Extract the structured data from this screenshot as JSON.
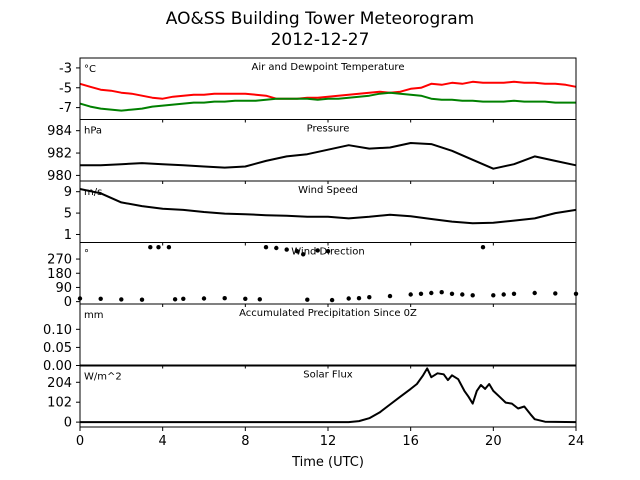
{
  "title": "AO&SS Building Tower Meteorogram",
  "subtitle": "2012-12-27",
  "chart_data": [
    {
      "type": "line",
      "title": "Air and Dewpoint Temperature",
      "unit": "°C",
      "ylim": [
        -8.2,
        -2.0
      ],
      "yticks": [
        -3,
        -5,
        -7
      ],
      "series": [
        {
          "color": "#ff0000",
          "x": [
            0,
            0.5,
            1,
            1.5,
            2,
            2.5,
            3,
            3.5,
            4,
            4.5,
            5,
            5.5,
            6,
            6.5,
            7,
            7.5,
            8,
            8.5,
            9,
            9.5,
            10,
            10.5,
            11,
            11.5,
            12,
            12.5,
            13,
            13.5,
            14,
            14.5,
            15,
            15.5,
            16,
            16.5,
            17,
            17.5,
            18,
            18.5,
            19,
            19.5,
            20,
            20.5,
            21,
            21.5,
            22,
            22.5,
            23,
            23.5,
            24
          ],
          "y": [
            -4.6,
            -4.9,
            -5.2,
            -5.3,
            -5.5,
            -5.6,
            -5.8,
            -6.0,
            -6.1,
            -5.9,
            -5.8,
            -5.7,
            -5.7,
            -5.6,
            -5.6,
            -5.6,
            -5.6,
            -5.7,
            -5.8,
            -6.1,
            -6.1,
            -6.1,
            -6.0,
            -6.0,
            -5.9,
            -5.8,
            -5.7,
            -5.6,
            -5.5,
            -5.4,
            -5.5,
            -5.4,
            -5.1,
            -5.0,
            -4.6,
            -4.7,
            -4.5,
            -4.6,
            -4.4,
            -4.5,
            -4.5,
            -4.5,
            -4.4,
            -4.5,
            -4.5,
            -4.6,
            -4.6,
            -4.7,
            -4.9
          ]
        },
        {
          "color": "#008000",
          "x": [
            0,
            0.5,
            1,
            1.5,
            2,
            2.5,
            3,
            3.5,
            4,
            4.5,
            5,
            5.5,
            6,
            6.5,
            7,
            7.5,
            8,
            8.5,
            9,
            9.5,
            10,
            10.5,
            11,
            11.5,
            12,
            12.5,
            13,
            13.5,
            14,
            14.5,
            15,
            15.5,
            16,
            16.5,
            17,
            17.5,
            18,
            18.5,
            19,
            19.5,
            20,
            20.5,
            21,
            21.5,
            22,
            22.5,
            23,
            23.5,
            24
          ],
          "y": [
            -6.6,
            -6.9,
            -7.1,
            -7.2,
            -7.3,
            -7.2,
            -7.1,
            -6.9,
            -6.8,
            -6.7,
            -6.6,
            -6.5,
            -6.5,
            -6.4,
            -6.4,
            -6.3,
            -6.3,
            -6.3,
            -6.2,
            -6.1,
            -6.1,
            -6.1,
            -6.1,
            -6.2,
            -6.1,
            -6.1,
            -6.0,
            -5.9,
            -5.8,
            -5.6,
            -5.5,
            -5.6,
            -5.7,
            -5.8,
            -6.1,
            -6.2,
            -6.2,
            -6.3,
            -6.3,
            -6.4,
            -6.4,
            -6.4,
            -6.3,
            -6.4,
            -6.4,
            -6.4,
            -6.5,
            -6.5,
            -6.5
          ]
        }
      ]
    },
    {
      "type": "line",
      "title": "Pressure",
      "unit": "hPa",
      "ylim": [
        979.5,
        985.0
      ],
      "yticks": [
        984,
        982,
        980
      ],
      "series": [
        {
          "color": "#000000",
          "x": [
            0,
            1,
            2,
            3,
            4,
            5,
            6,
            7,
            8,
            9,
            10,
            11,
            12,
            13,
            14,
            15,
            16,
            17,
            18,
            19,
            20,
            21,
            22,
            23,
            24
          ],
          "y": [
            980.9,
            980.9,
            981.0,
            981.1,
            981.0,
            980.9,
            980.8,
            980.7,
            980.8,
            981.3,
            981.7,
            981.9,
            982.3,
            982.7,
            982.4,
            982.5,
            982.9,
            982.8,
            982.2,
            981.4,
            980.6,
            981.0,
            981.7,
            981.3,
            980.9
          ]
        }
      ]
    },
    {
      "type": "line",
      "title": "Wind Speed",
      "unit": "m/s",
      "ylim": [
        -0.5,
        11
      ],
      "yticks": [
        9,
        5,
        1
      ],
      "series": [
        {
          "color": "#000000",
          "x": [
            0,
            1,
            2,
            3,
            4,
            5,
            6,
            7,
            8,
            9,
            10,
            11,
            12,
            13,
            14,
            15,
            16,
            17,
            18,
            19,
            20,
            21,
            22,
            23,
            24
          ],
          "y": [
            9.5,
            8.7,
            7.0,
            6.3,
            5.8,
            5.6,
            5.2,
            4.9,
            4.8,
            4.6,
            4.5,
            4.3,
            4.3,
            4.0,
            4.3,
            4.7,
            4.4,
            3.9,
            3.4,
            3.1,
            3.2,
            3.6,
            4.0,
            5.0,
            5.6
          ]
        }
      ]
    },
    {
      "type": "scatter",
      "title": "Wind Direction",
      "unit": "°",
      "ylim": [
        -15,
        375
      ],
      "yticks": [
        270,
        180,
        90,
        0
      ],
      "series": [
        {
          "color": "#000000",
          "x": [
            0,
            1,
            2,
            3,
            3.4,
            3.8,
            4.3,
            4.6,
            5,
            6,
            7,
            8,
            8.7,
            9,
            9.5,
            10,
            10.5,
            10.8,
            11,
            11.5,
            12,
            12.2,
            13,
            13.5,
            14,
            15,
            16,
            16.5,
            17,
            17.5,
            18,
            18.5,
            19,
            19.5,
            20,
            20.5,
            21,
            22,
            23,
            24
          ],
          "y": [
            20,
            18,
            14,
            12,
            345,
            345,
            345,
            15,
            18,
            20,
            22,
            18,
            15,
            345,
            340,
            330,
            320,
            300,
            12,
            325,
            320,
            10,
            20,
            22,
            28,
            35,
            45,
            50,
            55,
            60,
            50,
            45,
            40,
            345,
            40,
            45,
            50,
            55,
            52,
            50
          ]
        }
      ]
    },
    {
      "type": "line",
      "title": "Accumulated Precipitation Since 0Z",
      "unit": "mm",
      "ylim": [
        0.0,
        0.17
      ],
      "yticks": [
        0.1,
        0.05,
        0.0
      ],
      "series": [
        {
          "color": "#000000",
          "x": [
            0,
            24
          ],
          "y": [
            0.0,
            0.0
          ]
        }
      ]
    },
    {
      "type": "line",
      "title": "Solar Flux",
      "unit": "W/m^2",
      "ylim": [
        -25,
        290
      ],
      "yticks": [
        204,
        102,
        0
      ],
      "series": [
        {
          "color": "#000000",
          "x": [
            0,
            13.0,
            13.5,
            14.0,
            14.5,
            15.0,
            15.5,
            16.0,
            16.3,
            16.6,
            16.8,
            17.0,
            17.3,
            17.6,
            17.8,
            18.0,
            18.3,
            18.6,
            18.8,
            19.0,
            19.2,
            19.4,
            19.6,
            19.8,
            20.0,
            20.3,
            20.6,
            20.9,
            21.2,
            21.5,
            21.8,
            22.0,
            22.5,
            24
          ],
          "y": [
            0,
            0,
            5,
            20,
            50,
            90,
            130,
            170,
            195,
            240,
            275,
            230,
            250,
            245,
            215,
            240,
            220,
            160,
            130,
            95,
            160,
            190,
            170,
            195,
            160,
            130,
            100,
            95,
            70,
            80,
            40,
            15,
            2,
            0
          ]
        }
      ]
    }
  ],
  "axes": {
    "xlabel": "Time (UTC)",
    "xlim": [
      0,
      24
    ],
    "xticks": [
      0,
      4,
      8,
      12,
      16,
      20,
      24
    ]
  }
}
